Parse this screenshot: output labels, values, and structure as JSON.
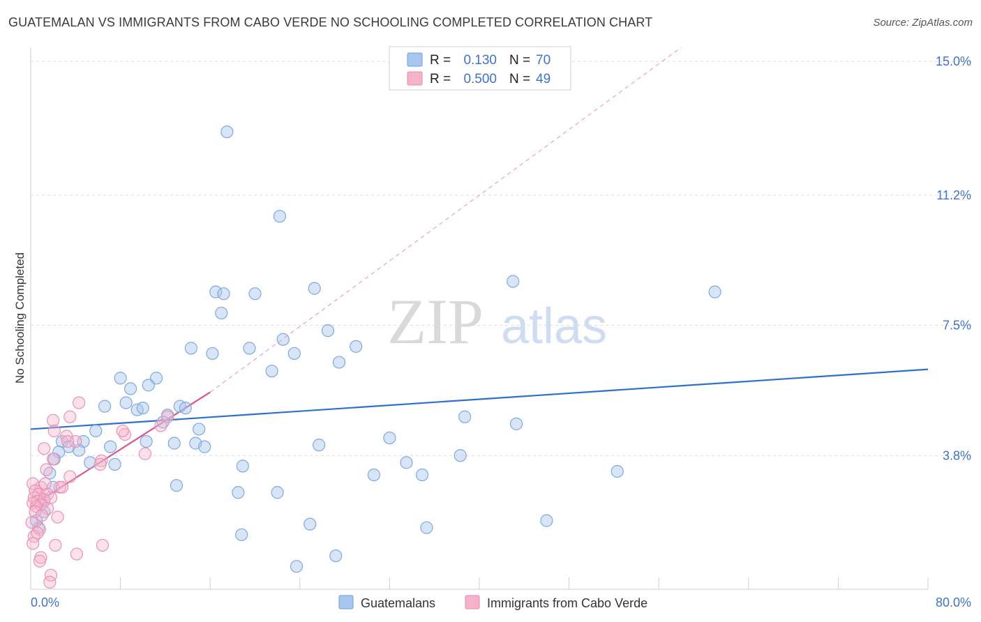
{
  "title": "GUATEMALAN VS IMMIGRANTS FROM CABO VERDE NO SCHOOLING COMPLETED CORRELATION CHART",
  "source": "Source: ZipAtlas.com",
  "watermark": {
    "zip": "ZIP",
    "atlas": "atlas"
  },
  "colors": {
    "blue": "#2f6fcc",
    "blue_fill": "#a9c6ee",
    "pink": "#e0528f",
    "pink_fill": "#f4b3cb",
    "axis_text": "#3f73c7"
  },
  "chart_data": {
    "type": "scatter",
    "title": "GUATEMALAN VS IMMIGRANTS FROM CABO VERDE NO SCHOOLING COMPLETED CORRELATION CHART",
    "xlabel": "",
    "ylabel": "No Schooling Completed",
    "xlim": [
      0,
      80
    ],
    "ylim": [
      0,
      15.4
    ],
    "x_tick_labels": [
      "0.0%",
      "80.0%"
    ],
    "y_ticks": [
      {
        "value": 3.8,
        "label": "3.8%"
      },
      {
        "value": 7.5,
        "label": "7.5%"
      },
      {
        "value": 11.2,
        "label": "11.2%"
      },
      {
        "value": 15.0,
        "label": "15.0%"
      }
    ],
    "legend_stats": [
      {
        "r_label": "R =",
        "r_value": "0.130",
        "n_label": "N =",
        "n_value": "70"
      },
      {
        "r_label": "R =",
        "r_value": "0.500",
        "n_label": "N =",
        "n_value": "49"
      }
    ],
    "series": [
      {
        "name": "Guatemalans",
        "color": "#a9c6ee",
        "trend": {
          "x0": 0,
          "y0": 4.55,
          "x1": 80,
          "y1": 6.25
        },
        "points": [
          [
            17.5,
            13.0
          ],
          [
            22.2,
            10.6
          ],
          [
            43.0,
            8.75
          ],
          [
            61.0,
            8.45
          ],
          [
            16.5,
            8.45
          ],
          [
            17.2,
            8.4
          ],
          [
            20.0,
            8.4
          ],
          [
            25.3,
            8.55
          ],
          [
            17.0,
            7.85
          ],
          [
            26.5,
            7.35
          ],
          [
            22.5,
            7.1
          ],
          [
            29.0,
            6.9
          ],
          [
            14.3,
            6.85
          ],
          [
            16.2,
            6.7
          ],
          [
            19.5,
            6.85
          ],
          [
            23.5,
            6.7
          ],
          [
            27.5,
            6.45
          ],
          [
            21.5,
            6.2
          ],
          [
            8.0,
            6.0
          ],
          [
            11.2,
            6.0
          ],
          [
            8.9,
            5.7
          ],
          [
            10.5,
            5.8
          ],
          [
            6.6,
            5.2
          ],
          [
            8.5,
            5.3
          ],
          [
            9.5,
            5.1
          ],
          [
            10.0,
            5.15
          ],
          [
            13.3,
            5.2
          ],
          [
            13.8,
            5.15
          ],
          [
            12.2,
            4.95
          ],
          [
            11.8,
            4.75
          ],
          [
            5.8,
            4.5
          ],
          [
            15.0,
            4.55
          ],
          [
            38.7,
            4.9
          ],
          [
            43.3,
            4.7
          ],
          [
            2.8,
            4.2
          ],
          [
            4.7,
            4.2
          ],
          [
            10.3,
            4.2
          ],
          [
            12.8,
            4.15
          ],
          [
            14.7,
            4.15
          ],
          [
            15.5,
            4.05
          ],
          [
            7.1,
            4.05
          ],
          [
            25.7,
            4.1
          ],
          [
            32.0,
            4.3
          ],
          [
            3.4,
            4.05
          ],
          [
            2.5,
            3.9
          ],
          [
            4.3,
            3.95
          ],
          [
            2.1,
            3.7
          ],
          [
            5.3,
            3.6
          ],
          [
            7.5,
            3.55
          ],
          [
            18.9,
            3.5
          ],
          [
            33.5,
            3.6
          ],
          [
            1.7,
            3.3
          ],
          [
            30.6,
            3.25
          ],
          [
            34.9,
            3.25
          ],
          [
            38.3,
            3.8
          ],
          [
            52.3,
            3.35
          ],
          [
            13.0,
            2.95
          ],
          [
            18.5,
            2.75
          ],
          [
            22.0,
            2.75
          ],
          [
            1.2,
            2.5
          ],
          [
            46.0,
            1.95
          ],
          [
            0.7,
            1.75
          ],
          [
            24.9,
            1.85
          ],
          [
            35.3,
            1.75
          ],
          [
            18.8,
            1.55
          ],
          [
            27.2,
            0.95
          ],
          [
            23.7,
            0.65
          ],
          [
            1.2,
            2.2
          ],
          [
            0.5,
            1.95
          ],
          [
            2.0,
            2.9
          ]
        ]
      },
      {
        "name": "Immigrants from Cabo Verde",
        "color": "#f4b3cb",
        "trend": {
          "x0": 0,
          "y0": 2.35,
          "x1": 16,
          "y1": 5.6
        },
        "trend_ext": {
          "x0": 16,
          "y0": 5.6,
          "x1": 58,
          "y1": 15.4
        },
        "points": [
          [
            4.3,
            5.3
          ],
          [
            3.5,
            4.9
          ],
          [
            2.0,
            4.8
          ],
          [
            12.2,
            4.9
          ],
          [
            8.4,
            4.4
          ],
          [
            11.6,
            4.65
          ],
          [
            2.1,
            4.5
          ],
          [
            8.2,
            4.5
          ],
          [
            3.2,
            4.35
          ],
          [
            4.0,
            4.2
          ],
          [
            3.3,
            4.2
          ],
          [
            1.2,
            4.0
          ],
          [
            10.2,
            3.85
          ],
          [
            6.3,
            3.65
          ],
          [
            6.2,
            3.55
          ],
          [
            2.0,
            3.7
          ],
          [
            1.4,
            3.4
          ],
          [
            3.5,
            3.2
          ],
          [
            0.2,
            3.0
          ],
          [
            0.9,
            2.9
          ],
          [
            1.3,
            3.0
          ],
          [
            2.6,
            2.9
          ],
          [
            2.8,
            2.9
          ],
          [
            0.4,
            2.8
          ],
          [
            0.7,
            2.7
          ],
          [
            1.5,
            2.7
          ],
          [
            0.3,
            2.6
          ],
          [
            0.6,
            2.5
          ],
          [
            1.2,
            2.55
          ],
          [
            0.2,
            2.45
          ],
          [
            0.9,
            2.4
          ],
          [
            0.5,
            2.35
          ],
          [
            1.8,
            2.6
          ],
          [
            1.5,
            2.3
          ],
          [
            0.4,
            2.2
          ],
          [
            1.0,
            2.1
          ],
          [
            2.4,
            2.05
          ],
          [
            0.1,
            1.9
          ],
          [
            0.8,
            1.7
          ],
          [
            0.3,
            1.5
          ],
          [
            0.6,
            1.6
          ],
          [
            0.2,
            1.3
          ],
          [
            2.2,
            1.25
          ],
          [
            6.4,
            1.25
          ],
          [
            4.1,
            1.0
          ],
          [
            0.9,
            0.9
          ],
          [
            0.8,
            0.8
          ],
          [
            1.8,
            0.4
          ],
          [
            1.7,
            0.2
          ]
        ]
      }
    ]
  }
}
